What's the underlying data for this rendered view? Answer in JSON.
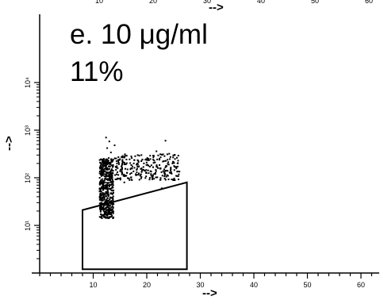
{
  "chart_data": {
    "type": "scatter",
    "annotation_title": "e. 10 μg/ml",
    "annotation_percent": "11%",
    "xlabel": "-->",
    "ylabel": "-->",
    "top_axis_label": "-->",
    "top_axis_ticks": [
      "10",
      "20",
      "30",
      "40",
      "50",
      "60"
    ],
    "x_ticks": [
      {
        "value": 10,
        "label": "10"
      },
      {
        "value": 20,
        "label": "20"
      },
      {
        "value": 30,
        "label": "30"
      },
      {
        "value": 40,
        "label": "40"
      },
      {
        "value": 50,
        "label": "50"
      },
      {
        "value": 60,
        "label": "60"
      }
    ],
    "y_scale": "log",
    "y_ticks": [
      {
        "value": 10,
        "label": "10¹"
      },
      {
        "value": 100,
        "label": "10²"
      },
      {
        "value": 1000,
        "label": "10³"
      },
      {
        "value": 10000,
        "label": "10⁴"
      }
    ],
    "xlim": [
      0,
      61
    ],
    "ylim": [
      1,
      17000
    ],
    "gate": [
      [
        8,
        1.2
      ],
      [
        27.5,
        1.2
      ],
      [
        27.5,
        80
      ],
      [
        8,
        21
      ]
    ],
    "points": [
      [
        11.2,
        60
      ],
      [
        11.8,
        45
      ],
      [
        12.3,
        30
      ],
      [
        13.1,
        22
      ],
      [
        12.7,
        110
      ],
      [
        11.5,
        140
      ],
      [
        12.2,
        200
      ],
      [
        13.6,
        90
      ],
      [
        14.2,
        170
      ],
      [
        12.9,
        260
      ],
      [
        13.3,
        340
      ],
      [
        12.6,
        420
      ],
      [
        13.0,
        580
      ],
      [
        12.4,
        700
      ],
      [
        14.0,
        480
      ],
      [
        12.1,
        35
      ],
      [
        11.7,
        75
      ],
      [
        13.4,
        55
      ],
      [
        12.5,
        18
      ],
      [
        13.8,
        28
      ],
      [
        15.5,
        210
      ],
      [
        16.4,
        150
      ],
      [
        17.2,
        260
      ],
      [
        18.1,
        190
      ],
      [
        19.0,
        300
      ],
      [
        20.3,
        180
      ],
      [
        21.2,
        240
      ],
      [
        22.1,
        160
      ],
      [
        23.0,
        220
      ],
      [
        23.9,
        140
      ],
      [
        24.8,
        200
      ],
      [
        25.5,
        110
      ],
      [
        22.5,
        90
      ],
      [
        20.8,
        120
      ],
      [
        18.8,
        110
      ],
      [
        24.2,
        320
      ],
      [
        21.8,
        360
      ],
      [
        25.2,
        170
      ],
      [
        16.9,
        120
      ],
      [
        19.6,
        140
      ],
      [
        23.5,
        600
      ],
      [
        22.8,
        60
      ],
      [
        26.1,
        135
      ],
      [
        15.8,
        80
      ],
      [
        20.1,
        260
      ]
    ]
  }
}
